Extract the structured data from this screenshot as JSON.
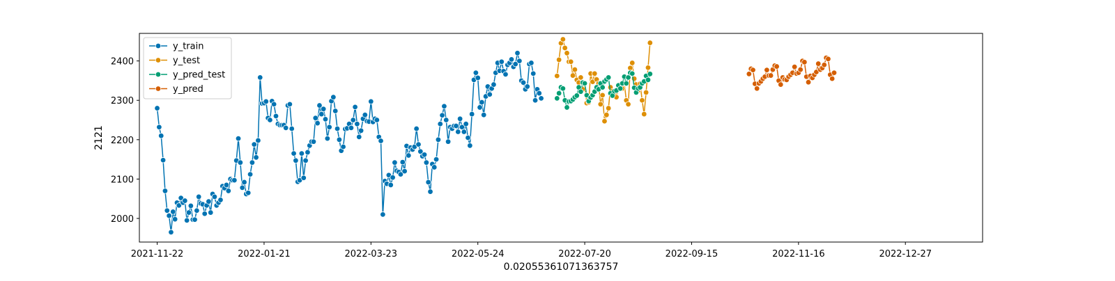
{
  "chart_data": {
    "type": "line",
    "title": "",
    "xlabel": "0.02055361071363757",
    "ylabel": "2121",
    "x_domain": [
      -3,
      139
    ],
    "ylim": [
      1940,
      2470
    ],
    "yticks": [
      2000,
      2100,
      2200,
      2300,
      2400
    ],
    "xticks": [
      {
        "label": "2021-11-22",
        "x": 0
      },
      {
        "label": "2022-01-21",
        "x": 18
      },
      {
        "label": "2022-03-23",
        "x": 36
      },
      {
        "label": "2022-05-24",
        "x": 54
      },
      {
        "label": "2022-07-20",
        "x": 72
      },
      {
        "label": "2022-09-15",
        "x": 90
      },
      {
        "label": "2022-11-16",
        "x": 108
      },
      {
        "label": "2022-12-27",
        "x": 126
      }
    ],
    "legend_position": "top-left",
    "series": [
      {
        "name": "y_train",
        "color": "#0173b2",
        "start": 0,
        "step": 0.333333,
        "values": [
          2280,
          2232,
          2210,
          2148,
          2070,
          2020,
          2007,
          1965,
          2017,
          1998,
          2040,
          2033,
          2052,
          2040,
          2045,
          1995,
          2015,
          2032,
          1997,
          1997,
          2020,
          2055,
          2038,
          2036,
          2012,
          2033,
          2043,
          2015,
          2062,
          2055,
          2033,
          2040,
          2047,
          2082,
          2077,
          2085,
          2070,
          2100,
          2097,
          2097,
          2147,
          2203,
          2142,
          2078,
          2092,
          2062,
          2065,
          2112,
          2142,
          2188,
          2155,
          2198,
          2358,
          2292,
          2293,
          2297,
          2255,
          2250,
          2298,
          2290,
          2260,
          2240,
          2237,
          2237,
          2237,
          2230,
          2287,
          2290,
          2228,
          2165,
          2147,
          2093,
          2097,
          2165,
          2103,
          2147,
          2168,
          2185,
          2195,
          2195,
          2255,
          2242,
          2287,
          2265,
          2278,
          2252,
          2203,
          2232,
          2298,
          2308,
          2273,
          2228,
          2200,
          2172,
          2182,
          2227,
          2229,
          2240,
          2230,
          2250,
          2283,
          2240,
          2207,
          2223,
          2253,
          2263,
          2247,
          2246,
          2297,
          2245,
          2253,
          2250,
          2207,
          2197,
          2010,
          2095,
          2088,
          2110,
          2085,
          2104,
          2142,
          2121,
          2118,
          2112,
          2143,
          2120,
          2184,
          2160,
          2180,
          2175,
          2182,
          2228,
          2188,
          2170,
          2158,
          2162,
          2142,
          2092,
          2068,
          2138,
          2130,
          2150,
          2200,
          2240,
          2262,
          2285,
          2250,
          2195,
          2232,
          2228,
          2235,
          2235,
          2220,
          2253,
          2232,
          2220,
          2240,
          2205,
          2185,
          2265,
          2352,
          2370,
          2357,
          2282,
          2295,
          2263,
          2310,
          2335,
          2315,
          2330,
          2340,
          2370,
          2395,
          2375,
          2398,
          2374,
          2366,
          2390,
          2395,
          2404,
          2385,
          2392,
          2420,
          2400,
          2350,
          2345,
          2328,
          2335,
          2392,
          2395,
          2368,
          2300,
          2328,
          2318,
          2305
        ]
      },
      {
        "name": "y_test",
        "color": "#de8f05",
        "start": 67.333,
        "step": 0.333333,
        "values": [
          2362,
          2403,
          2445,
          2455,
          2433,
          2420,
          2398,
          2398,
          2363,
          2378,
          2352,
          2345,
          2358,
          2328,
          2343,
          2293,
          2295,
          2368,
          2347,
          2368,
          2353,
          2343,
          2290,
          2313,
          2247,
          2263,
          2280,
          2333,
          2323,
          2318,
          2308,
          2328,
          2340,
          2330,
          2343,
          2300,
          2290,
          2382,
          2395,
          2355,
          2340,
          2325,
          2342,
          2300,
          2265,
          2320,
          2383,
          2446
        ]
      },
      {
        "name": "y_pred_test",
        "color": "#029e73",
        "start": 67.333,
        "step": 0.333333,
        "values": [
          2305,
          2318,
          2333,
          2330,
          2300,
          2282,
          2297,
          2298,
          2302,
          2308,
          2312,
          2333,
          2322,
          2345,
          2343,
          2313,
          2298,
          2307,
          2313,
          2322,
          2333,
          2328,
          2343,
          2333,
          2348,
          2353,
          2358,
          2318,
          2312,
          2323,
          2325,
          2338,
          2330,
          2343,
          2360,
          2343,
          2358,
          2370,
          2368,
          2332,
          2320,
          2330,
          2333,
          2343,
          2348,
          2362,
          2352,
          2367
        ]
      },
      {
        "name": "y_pred",
        "color": "#d55e00",
        "start": 99.667,
        "step": 0.333333,
        "values": [
          2367,
          2380,
          2377,
          2342,
          2330,
          2343,
          2348,
          2355,
          2360,
          2377,
          2363,
          2363,
          2378,
          2388,
          2386,
          2350,
          2340,
          2358,
          2353,
          2352,
          2360,
          2365,
          2370,
          2385,
          2368,
          2370,
          2378,
          2400,
          2397,
          2360,
          2346,
          2362,
          2357,
          2365,
          2372,
          2393,
          2378,
          2382,
          2390,
          2408,
          2405,
          2365,
          2355,
          2370
        ]
      }
    ]
  }
}
